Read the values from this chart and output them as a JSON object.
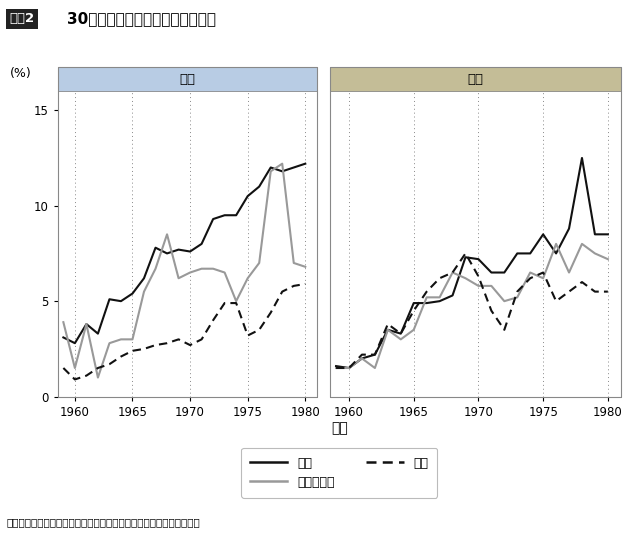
{
  "title_box": "図表2",
  "title_main": "30代後半時点の生活不安定者割合",
  "ylabel": "(%)",
  "xlabel": "生年",
  "footnote": "（親と同居する未婚の不安定雇用・非就業者を生活不安定者と定義）",
  "panel_male_label": "男性",
  "panel_female_label": "女性",
  "panel_male_bg": "#b8cce4",
  "panel_female_bg": "#c4bd97",
  "years": [
    1959,
    1960,
    1961,
    1962,
    1963,
    1964,
    1965,
    1966,
    1967,
    1968,
    1969,
    1970,
    1971,
    1972,
    1973,
    1974,
    1975,
    1976,
    1977,
    1978,
    1979,
    1980
  ],
  "male_kotsotu": [
    3.1,
    2.8,
    3.8,
    3.3,
    5.1,
    5.0,
    5.4,
    6.2,
    7.8,
    7.5,
    7.7,
    7.6,
    8.0,
    9.3,
    9.5,
    9.5,
    10.5,
    11.0,
    12.0,
    11.8,
    12.0,
    12.2
  ],
  "male_tandai": [
    3.9,
    1.5,
    3.8,
    1.0,
    2.8,
    3.0,
    3.0,
    5.5,
    6.7,
    8.5,
    6.2,
    6.5,
    6.7,
    6.7,
    6.5,
    5.0,
    6.2,
    7.0,
    11.8,
    12.2,
    7.0,
    6.8
  ],
  "male_daigaku": [
    1.5,
    0.9,
    1.1,
    1.5,
    1.7,
    2.1,
    2.4,
    2.5,
    2.7,
    2.8,
    3.0,
    2.7,
    3.0,
    4.0,
    4.9,
    4.9,
    3.2,
    3.5,
    4.4,
    5.5,
    5.8,
    5.9
  ],
  "female_kotsotu": [
    1.6,
    1.5,
    2.0,
    2.2,
    3.5,
    3.3,
    4.9,
    4.9,
    5.0,
    5.3,
    7.3,
    7.2,
    6.5,
    6.5,
    7.5,
    7.5,
    8.5,
    7.5,
    8.8,
    12.5,
    8.5,
    8.5
  ],
  "female_tandai": [
    1.5,
    1.5,
    2.0,
    1.5,
    3.5,
    3.0,
    3.5,
    5.2,
    5.2,
    6.5,
    6.2,
    5.8,
    5.8,
    5.0,
    5.2,
    6.5,
    6.2,
    8.0,
    6.5,
    8.0,
    7.5,
    7.2
  ],
  "female_daigaku": [
    1.5,
    1.5,
    2.2,
    2.2,
    3.8,
    3.3,
    4.5,
    5.5,
    6.2,
    6.5,
    7.5,
    6.3,
    4.5,
    3.5,
    5.5,
    6.2,
    6.5,
    5.0,
    5.5,
    6.0,
    5.5,
    5.5
  ],
  "ylim": [
    0,
    16
  ],
  "yticks": [
    0,
    5,
    10,
    15
  ],
  "xticks": [
    1960,
    1965,
    1970,
    1975,
    1980
  ],
  "vlines": [
    1960,
    1965,
    1970,
    1975,
    1980
  ],
  "color_kotsotu": "#111111",
  "color_tandai": "#999999",
  "color_daigaku": "#111111",
  "lw": 1.5,
  "legend_labels": [
    "高卒",
    "短大高専卒",
    "大卒"
  ]
}
